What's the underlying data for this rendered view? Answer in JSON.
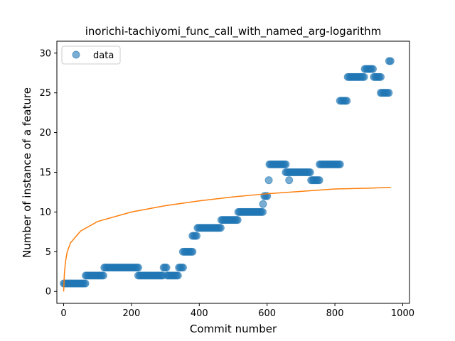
{
  "chart_data": {
    "type": "scatter",
    "title": "inorichi-tachiyomi_func_call_with_named_arg-logarithm",
    "xlabel": "Commit number",
    "ylabel": "Number of instance of a feature",
    "xlim": [
      -20,
      1020
    ],
    "ylim": [
      -1.5,
      31.5
    ],
    "xticks": [
      0,
      200,
      400,
      600,
      800,
      1000
    ],
    "yticks": [
      0,
      5,
      10,
      15,
      20,
      25,
      30
    ],
    "grid": false,
    "legend": {
      "placement": "top-left",
      "entries": [
        "data"
      ]
    },
    "colors": {
      "data": "#1f77b4",
      "fit": "#ff7f0e"
    },
    "series": [
      {
        "name": "data",
        "kind": "scatter",
        "segments": [
          {
            "x_start": 0,
            "x_end": 65,
            "y": 1
          },
          {
            "x_start": 65,
            "x_end": 120,
            "y": 2
          },
          {
            "x_start": 120,
            "x_end": 220,
            "y": 3
          },
          {
            "x_start": 220,
            "x_end": 295,
            "y": 2
          },
          {
            "x_start": 295,
            "x_end": 305,
            "y": 3
          },
          {
            "x_start": 305,
            "x_end": 340,
            "y": 2
          },
          {
            "x_start": 340,
            "x_end": 352,
            "y": 3
          },
          {
            "x_start": 352,
            "x_end": 380,
            "y": 5
          },
          {
            "x_start": 380,
            "x_end": 395,
            "y": 7
          },
          {
            "x_start": 395,
            "x_end": 465,
            "y": 8
          },
          {
            "x_start": 465,
            "x_end": 515,
            "y": 9
          },
          {
            "x_start": 515,
            "x_end": 590,
            "y": 10
          },
          {
            "x_start": 592,
            "x_end": 603,
            "y": 12
          },
          {
            "x_start": 607,
            "x_end": 655,
            "y": 16
          },
          {
            "x_start": 655,
            "x_end": 730,
            "y": 15
          },
          {
            "x_start": 730,
            "x_end": 755,
            "y": 14
          },
          {
            "x_start": 755,
            "x_end": 815,
            "y": 16
          },
          {
            "x_start": 815,
            "x_end": 838,
            "y": 24
          },
          {
            "x_start": 838,
            "x_end": 888,
            "y": 27
          },
          {
            "x_start": 888,
            "x_end": 915,
            "y": 28
          },
          {
            "x_start": 915,
            "x_end": 935,
            "y": 27
          },
          {
            "x_start": 935,
            "x_end": 960,
            "y": 25
          },
          {
            "x_start": 960,
            "x_end": 965,
            "y": 29
          }
        ],
        "points": [
          {
            "x": 588,
            "y": 11
          },
          {
            "x": 605,
            "y": 14
          },
          {
            "x": 665,
            "y": 14
          }
        ]
      },
      {
        "name": "",
        "kind": "line",
        "fit": "logarithm",
        "x_range": [
          0,
          965
        ],
        "samples": [
          {
            "x": 0,
            "y": 0
          },
          {
            "x": 2,
            "y": 2.1
          },
          {
            "x": 5,
            "y": 3.6
          },
          {
            "x": 10,
            "y": 4.9
          },
          {
            "x": 20,
            "y": 6.1
          },
          {
            "x": 50,
            "y": 7.6
          },
          {
            "x": 100,
            "y": 8.8
          },
          {
            "x": 200,
            "y": 10.0
          },
          {
            "x": 300,
            "y": 10.8
          },
          {
            "x": 400,
            "y": 11.4
          },
          {
            "x": 500,
            "y": 11.9
          },
          {
            "x": 600,
            "y": 12.3
          },
          {
            "x": 700,
            "y": 12.6
          },
          {
            "x": 800,
            "y": 12.9
          },
          {
            "x": 900,
            "y": 13.0
          },
          {
            "x": 965,
            "y": 13.1
          }
        ]
      }
    ]
  }
}
